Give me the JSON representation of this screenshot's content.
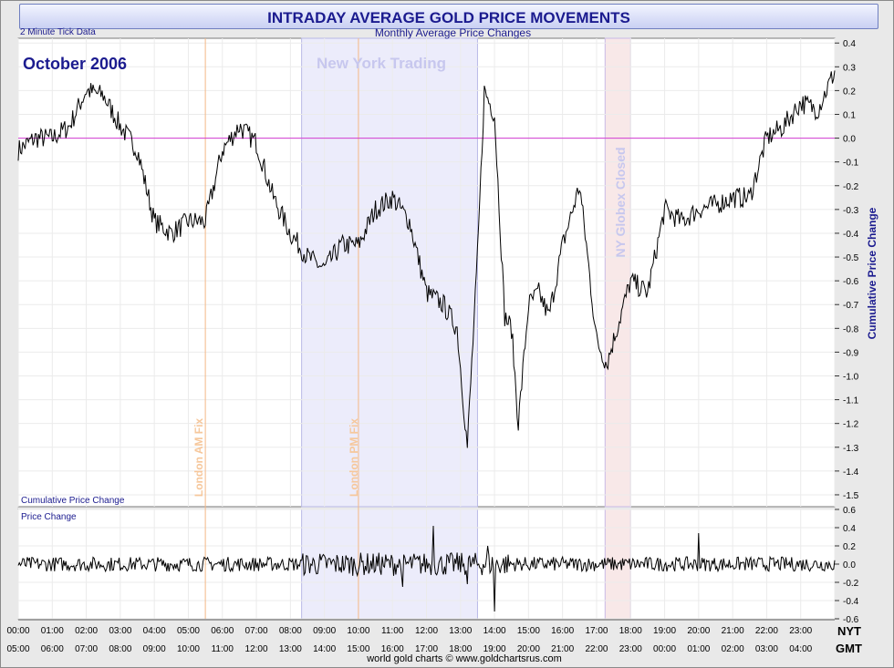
{
  "title": "INTRADAY AVERAGE GOLD PRICE MOVEMENTS",
  "subtitle": "Monthly Average Price Changes",
  "tick_note": "2 Minute Tick Data",
  "period_label": "October 2006",
  "footer": "world gold charts © www.goldchartsrus.com",
  "colors": {
    "accent": "#1b1b8f",
    "ny_band": "#ececfb",
    "globex_band": "#f8e8e8",
    "fix_line": "#f4b886",
    "zero_line": "#d23cd2",
    "price_line": "#000000"
  },
  "chart_data": [
    {
      "type": "line",
      "name": "main",
      "ylabel": "Cumulative Price Change",
      "bottom_label": "Cumulative Price Change",
      "ylim": [
        -1.55,
        0.42
      ],
      "yticks": [
        0.4,
        0.3,
        0.2,
        0.1,
        0.0,
        -0.1,
        -0.2,
        -0.3,
        -0.4,
        -0.5,
        -0.6,
        -0.7,
        -0.8,
        -0.9,
        -1.0,
        -1.1,
        -1.2,
        -1.3,
        -1.4,
        -1.5
      ],
      "ytick_labels": [
        "0.4",
        "0.3",
        "0.2",
        "0.1",
        "0.0",
        "-0.1",
        "-0.2",
        "-0.3",
        "-0.4",
        "-0.5",
        "-0.6",
        "-0.7",
        "-0.8",
        "-0.9",
        "-1.0",
        "-1.1",
        "-1.2",
        "-1.3",
        "-1.4",
        "-1.5"
      ],
      "xlim": [
        0,
        24
      ],
      "grid": true,
      "x_hours_nyt": [
        0,
        0.5,
        1,
        1.5,
        2,
        2.5,
        3,
        3.5,
        4,
        4.5,
        5,
        5.5,
        6,
        6.5,
        7,
        7.5,
        8,
        8.5,
        9,
        9.5,
        10,
        10.5,
        11,
        11.5,
        12,
        12.5,
        12.9,
        13.2,
        13.5,
        13.7,
        14,
        14.3,
        14.5,
        14.7,
        15,
        15.3,
        15.6,
        16,
        16.3,
        16.5,
        16.7,
        17,
        17.3,
        17.6,
        18,
        18.5,
        19,
        19.5,
        20,
        20.5,
        21,
        21.5,
        22,
        22.5,
        23,
        23.5,
        24
      ],
      "y_cumulative": [
        -0.05,
        0.0,
        0.0,
        0.05,
        0.2,
        0.18,
        0.05,
        -0.05,
        -0.35,
        -0.4,
        -0.35,
        -0.35,
        -0.05,
        0.05,
        -0.02,
        -0.25,
        -0.4,
        -0.5,
        -0.55,
        -0.45,
        -0.45,
        -0.3,
        -0.25,
        -0.35,
        -0.65,
        -0.7,
        -0.8,
        -1.3,
        -0.5,
        0.2,
        0.1,
        -0.75,
        -0.8,
        -1.2,
        -0.7,
        -0.65,
        -0.75,
        -0.45,
        -0.3,
        -0.2,
        -0.45,
        -0.85,
        -0.95,
        -0.8,
        -0.6,
        -0.65,
        -0.3,
        -0.35,
        -0.3,
        -0.28,
        -0.25,
        -0.25,
        0.0,
        0.05,
        0.15,
        0.12,
        0.28
      ]
    },
    {
      "type": "line",
      "name": "sub",
      "title": "Price Change",
      "ylim": [
        -0.6,
        0.6
      ],
      "yticks": [
        0.6,
        0.4,
        0.2,
        0.0,
        -0.2,
        -0.4,
        -0.6
      ],
      "ytick_labels": [
        "0.6",
        "0.4",
        "0.2",
        "0.0",
        "-0.2",
        "-0.4",
        "-0.6"
      ],
      "xlim": [
        0,
        24
      ],
      "spikes": [
        {
          "x": 12.2,
          "y": 0.42
        },
        {
          "x": 13.8,
          "y": 0.2
        },
        {
          "x": 14.0,
          "y": -0.52
        },
        {
          "x": 20.0,
          "y": 0.34
        },
        {
          "x": 11.3,
          "y": -0.25
        },
        {
          "x": 13.2,
          "y": -0.22
        }
      ]
    }
  ],
  "x_axis": {
    "nyt_label": "NYT",
    "gmt_label": "GMT",
    "nyt_ticks": [
      "00:00",
      "01:00",
      "02:00",
      "03:00",
      "04:00",
      "05:00",
      "06:00",
      "07:00",
      "08:00",
      "09:00",
      "10:00",
      "11:00",
      "12:00",
      "13:00",
      "14:00",
      "15:00",
      "16:00",
      "17:00",
      "18:00",
      "19:00",
      "20:00",
      "21:00",
      "22:00",
      "23:00"
    ],
    "gmt_ticks": [
      "05:00",
      "06:00",
      "07:00",
      "08:00",
      "09:00",
      "10:00",
      "11:00",
      "12:00",
      "13:00",
      "14:00",
      "15:00",
      "16:00",
      "17:00",
      "18:00",
      "19:00",
      "20:00",
      "21:00",
      "22:00",
      "23:00",
      "00:00",
      "01:00",
      "02:00",
      "03:00",
      "04:00"
    ]
  },
  "annotations": {
    "ny_trading": {
      "label": "New York Trading",
      "from_hour": 8.33,
      "to_hour": 13.5
    },
    "globex_closed": {
      "label": "NY Globex Closed",
      "from_hour": 17.25,
      "to_hour": 18.0
    },
    "london_am_fix": {
      "label": "London AM Fix",
      "hour": 5.5
    },
    "london_pm_fix": {
      "label": "London PM Fix",
      "hour": 10.0
    }
  }
}
